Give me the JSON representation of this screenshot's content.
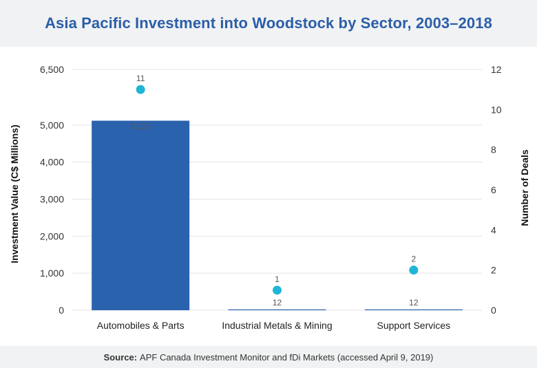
{
  "title": "Asia Pacific Investment into Woodstock by Sector, 2003–2018",
  "source": {
    "label": "Source:",
    "text": "APF Canada Investment Monitor and fDi Markets (accessed April 9, 2019)"
  },
  "colors": {
    "bar": "#2b62ad",
    "marker": "#1fb5d6",
    "grid": "#e3e3e3",
    "title": "#2b5ea8"
  },
  "chart_data": {
    "type": "bar",
    "categories": [
      "Automobiles & Parts",
      "Industrial Metals & Mining",
      "Support Services"
    ],
    "series": [
      {
        "kind": "bar",
        "axis": "left",
        "values": [
          5117,
          12,
          12
        ],
        "data_labels": [
          "5,117",
          "12",
          "12"
        ]
      },
      {
        "kind": "scatter",
        "axis": "right",
        "values": [
          11,
          1,
          2
        ],
        "data_labels": [
          "11",
          "1",
          "2"
        ]
      }
    ],
    "ylabel": "Investment Value (C$ Millions)",
    "y2label": "Number of Deals",
    "ylim": [
      0,
      6500
    ],
    "y2lim": [
      0,
      12
    ],
    "yticks": [
      "0",
      "1,000",
      "2,000",
      "3,000",
      "4,000",
      "5,000",
      "6,500"
    ],
    "ytick_values": [
      0,
      1000,
      2000,
      3000,
      4000,
      5000,
      6500
    ],
    "y2ticks": [
      "0",
      "2",
      "4",
      "6",
      "8",
      "10",
      "12"
    ],
    "y2tick_values": [
      0,
      2,
      4,
      6,
      8,
      10,
      12
    ],
    "grid": true
  }
}
